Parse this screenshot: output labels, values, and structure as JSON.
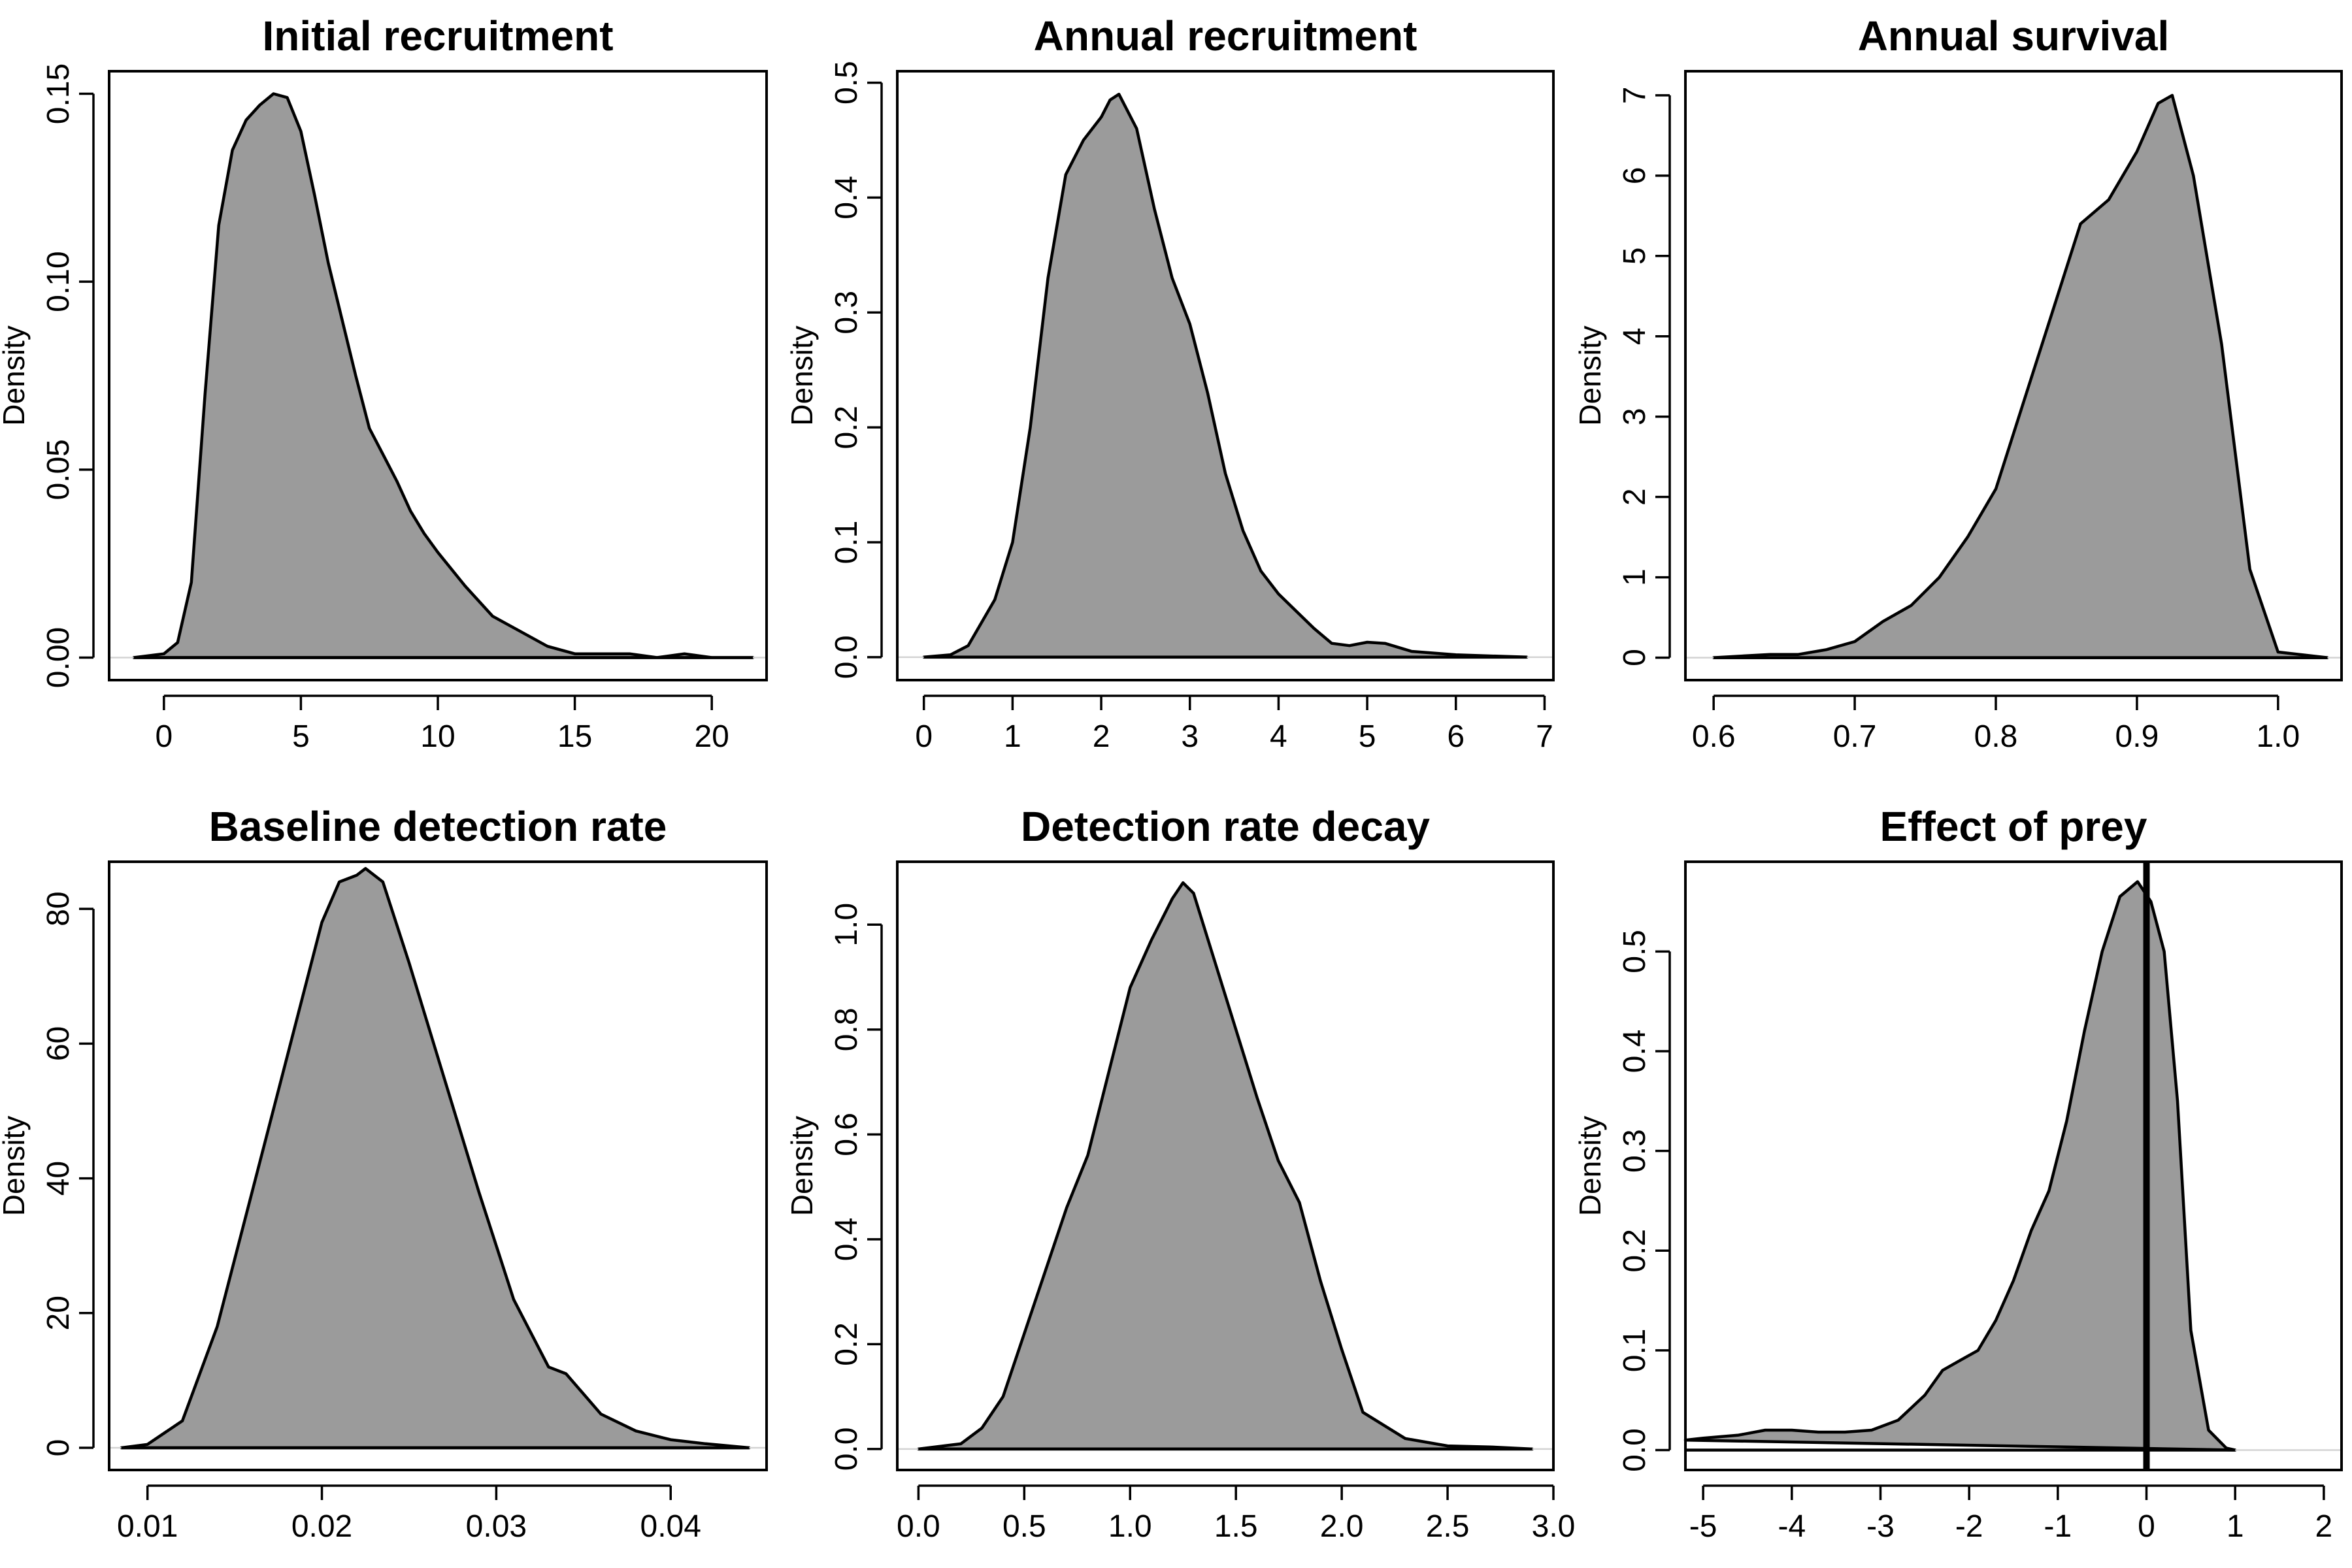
{
  "chart_data": [
    {
      "type": "area",
      "title": "Initial recruitment",
      "xlabel": "",
      "ylabel": "Density",
      "xlim": [
        -2,
        22
      ],
      "ylim": [
        -0.006,
        0.156
      ],
      "xticks": [
        0,
        5,
        10,
        15,
        20
      ],
      "yticks": [
        0.0,
        0.05,
        0.1,
        0.15
      ],
      "ytick_labels": [
        "0.00",
        "0.05",
        "0.10",
        "0.15"
      ],
      "x": [
        -1.1,
        0,
        0.5,
        1,
        1.5,
        2,
        2.5,
        3,
        3.5,
        4,
        4.5,
        5,
        5.5,
        6,
        6.5,
        7,
        7.5,
        8,
        8.5,
        9,
        9.5,
        10,
        11,
        12,
        13,
        14,
        15,
        16,
        17,
        18,
        19,
        20,
        21.5
      ],
      "y": [
        0,
        0.001,
        0.004,
        0.02,
        0.07,
        0.115,
        0.135,
        0.143,
        0.147,
        0.15,
        0.149,
        0.14,
        0.123,
        0.105,
        0.09,
        0.075,
        0.061,
        0.054,
        0.047,
        0.039,
        0.033,
        0.028,
        0.019,
        0.011,
        0.007,
        0.003,
        0.001,
        0.001,
        0.001,
        0,
        0.001,
        0,
        0
      ]
    },
    {
      "type": "area",
      "title": "Annual recruitment",
      "xlabel": "",
      "ylabel": "Density",
      "xlim": [
        -0.3,
        7.1
      ],
      "ylim": [
        -0.02,
        0.51
      ],
      "xticks": [
        0,
        1,
        2,
        3,
        4,
        5,
        6,
        7
      ],
      "yticks": [
        0.0,
        0.1,
        0.2,
        0.3,
        0.4,
        0.5
      ],
      "ytick_labels": [
        "0.0",
        "0.1",
        "0.2",
        "0.3",
        "0.4",
        "0.5"
      ],
      "x": [
        0,
        0.3,
        0.5,
        0.8,
        1.0,
        1.2,
        1.4,
        1.6,
        1.8,
        2.0,
        2.1,
        2.2,
        2.4,
        2.6,
        2.8,
        3.0,
        3.2,
        3.4,
        3.6,
        3.8,
        4.0,
        4.2,
        4.4,
        4.6,
        4.8,
        5.0,
        5.2,
        5.5,
        6.0,
        6.8
      ],
      "y": [
        0,
        0.002,
        0.01,
        0.05,
        0.1,
        0.2,
        0.33,
        0.42,
        0.45,
        0.47,
        0.485,
        0.49,
        0.46,
        0.39,
        0.33,
        0.29,
        0.23,
        0.16,
        0.11,
        0.075,
        0.055,
        0.04,
        0.025,
        0.012,
        0.01,
        0.013,
        0.012,
        0.005,
        0.002,
        0
      ]
    },
    {
      "type": "area",
      "title": "Annual survival",
      "xlabel": "",
      "ylabel": "Density",
      "xlim": [
        0.58,
        1.045
      ],
      "ylim": [
        -0.28,
        7.3
      ],
      "xticks": [
        0.6,
        0.7,
        0.8,
        0.9,
        1.0
      ],
      "xtick_labels": [
        "0.6",
        "0.7",
        "0.8",
        "0.9",
        "1.0"
      ],
      "yticks": [
        0,
        1,
        2,
        3,
        4,
        5,
        6,
        7
      ],
      "x": [
        0.6,
        0.64,
        0.66,
        0.68,
        0.7,
        0.72,
        0.74,
        0.76,
        0.78,
        0.8,
        0.82,
        0.84,
        0.86,
        0.88,
        0.9,
        0.915,
        0.925,
        0.94,
        0.96,
        0.98,
        1.0,
        1.035
      ],
      "y": [
        0,
        0.04,
        0.04,
        0.1,
        0.2,
        0.45,
        0.65,
        1.0,
        1.5,
        2.1,
        3.2,
        4.3,
        5.4,
        5.7,
        6.3,
        6.9,
        7.0,
        6.0,
        3.9,
        1.1,
        0.07,
        0
      ]
    },
    {
      "type": "area",
      "title": "Baseline detection rate",
      "xlabel": "",
      "ylabel": "Density",
      "xlim": [
        0.0078,
        0.0455
      ],
      "ylim": [
        -3.3,
        87
      ],
      "xticks": [
        0.01,
        0.02,
        0.03,
        0.04
      ],
      "xtick_labels": [
        "0.01",
        "0.02",
        "0.03",
        "0.04"
      ],
      "yticks": [
        0,
        20,
        40,
        60,
        80
      ],
      "x": [
        0.0085,
        0.01,
        0.012,
        0.014,
        0.016,
        0.018,
        0.02,
        0.021,
        0.022,
        0.0225,
        0.0235,
        0.025,
        0.027,
        0.029,
        0.031,
        0.033,
        0.034,
        0.035,
        0.036,
        0.038,
        0.04,
        0.042,
        0.0445
      ],
      "y": [
        0,
        0.5,
        4,
        18,
        38,
        58,
        78,
        84,
        85,
        86,
        84,
        72,
        55,
        38,
        22,
        12,
        11,
        8,
        5,
        2.5,
        1.2,
        0.6,
        0
      ]
    },
    {
      "type": "area",
      "title": "Detection rate decay",
      "xlabel": "",
      "ylabel": "Density",
      "xlim": [
        -0.1,
        3.0
      ],
      "ylim": [
        -0.04,
        1.12
      ],
      "xticks": [
        0.0,
        0.5,
        1.0,
        1.5,
        2.0,
        2.5,
        3.0
      ],
      "xtick_labels": [
        "0.0",
        "0.5",
        "1.0",
        "1.5",
        "2.0",
        "2.5",
        "3.0"
      ],
      "yticks": [
        0.0,
        0.2,
        0.4,
        0.6,
        0.8,
        1.0
      ],
      "ytick_labels": [
        "0.0",
        "0.2",
        "0.4",
        "0.6",
        "0.8",
        "1.0"
      ],
      "x": [
        0,
        0.2,
        0.3,
        0.4,
        0.5,
        0.6,
        0.7,
        0.8,
        0.9,
        1.0,
        1.1,
        1.2,
        1.25,
        1.3,
        1.4,
        1.5,
        1.6,
        1.7,
        1.8,
        1.9,
        2.0,
        2.1,
        2.3,
        2.5,
        2.7,
        2.9
      ],
      "y": [
        0,
        0.01,
        0.04,
        0.1,
        0.22,
        0.34,
        0.46,
        0.56,
        0.72,
        0.88,
        0.97,
        1.05,
        1.08,
        1.06,
        0.93,
        0.8,
        0.67,
        0.55,
        0.47,
        0.32,
        0.19,
        0.07,
        0.02,
        0.006,
        0.004,
        0
      ]
    },
    {
      "type": "area",
      "title": "Effect of prey",
      "xlabel": "",
      "ylabel": "Density",
      "xlim": [
        -5.2,
        2.2
      ],
      "ylim": [
        -0.02,
        0.59
      ],
      "xticks": [
        -5,
        -4,
        -3,
        -2,
        -1,
        0,
        1,
        2
      ],
      "xtick_labels": [
        "-5",
        "-4",
        "-3",
        "-2",
        "-1",
        "0",
        "1",
        "2"
      ],
      "yticks": [
        0.0,
        0.1,
        0.2,
        0.3,
        0.4,
        0.5
      ],
      "ytick_labels": [
        "0.0",
        "0.1",
        "0.2",
        "0.3",
        "0.4",
        "0.5"
      ],
      "vline": 0,
      "x": [
        -5.2,
        -5.0,
        -4.6,
        -4.3,
        -4.0,
        -3.7,
        -3.4,
        -3.1,
        -2.8,
        -2.5,
        -2.3,
        -2.1,
        -1.9,
        -1.7,
        -1.5,
        -1.3,
        -1.1,
        -0.9,
        -0.7,
        -0.5,
        -0.3,
        -0.1,
        0.05,
        0.2,
        0.35,
        0.5,
        0.7,
        0.9,
        1.0
      ],
      "y": [
        0.01,
        0.012,
        0.015,
        0.02,
        0.02,
        0.018,
        0.018,
        0.02,
        0.03,
        0.055,
        0.08,
        0.09,
        0.1,
        0.13,
        0.17,
        0.22,
        0.26,
        0.33,
        0.42,
        0.5,
        0.555,
        0.57,
        0.55,
        0.5,
        0.35,
        0.12,
        0.02,
        0.002,
        0
      ]
    }
  ]
}
